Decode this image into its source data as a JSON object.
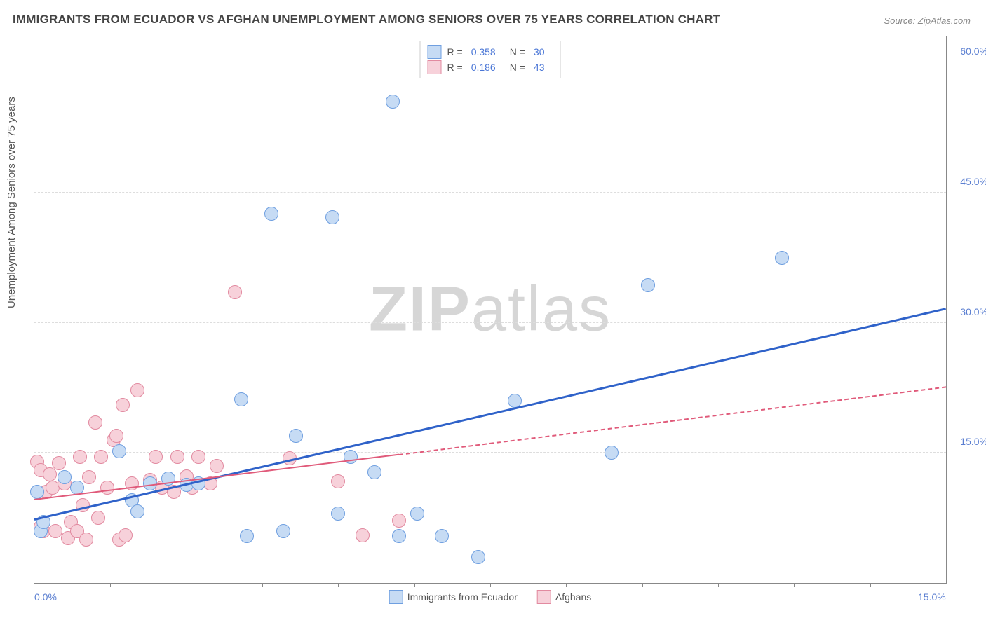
{
  "title": "IMMIGRANTS FROM ECUADOR VS AFGHAN UNEMPLOYMENT AMONG SENIORS OVER 75 YEARS CORRELATION CHART",
  "source": "Source: ZipAtlas.com",
  "ylabel": "Unemployment Among Seniors over 75 years",
  "watermark_bold": "ZIP",
  "watermark_light": "atlas",
  "chart": {
    "type": "scatter",
    "xlim": [
      0,
      15
    ],
    "ylim": [
      0,
      63
    ],
    "xtick_marks": [
      1.25,
      2.5,
      3.75,
      5.0,
      6.25,
      7.5,
      8.75,
      10.0,
      11.25,
      12.5,
      13.75
    ],
    "xticks": [
      {
        "v": 0,
        "label": "0.0%"
      },
      {
        "v": 15,
        "label": "15.0%"
      }
    ],
    "yticks": [
      {
        "v": 15,
        "label": "15.0%"
      },
      {
        "v": 30,
        "label": "30.0%"
      },
      {
        "v": 45,
        "label": "45.0%"
      },
      {
        "v": 60,
        "label": "60.0%"
      }
    ],
    "grid_color": "#dddddd",
    "background_color": "#ffffff",
    "series": [
      {
        "name": "Immigrants from Ecuador",
        "fill": "#c6dbf4",
        "stroke": "#6f9fe0",
        "marker_radius": 9,
        "R": "0.358",
        "N": "30",
        "trend": {
          "x1": 0,
          "y1": 7.2,
          "x2": 15,
          "y2": 31.5,
          "color": "#2f62c9",
          "width": 3,
          "dashed": false,
          "solid_until_x": 15
        },
        "points": [
          {
            "x": 0.05,
            "y": 10.5
          },
          {
            "x": 0.1,
            "y": 6.0
          },
          {
            "x": 0.15,
            "y": 7.0
          },
          {
            "x": 0.5,
            "y": 12.2
          },
          {
            "x": 0.7,
            "y": 11.0
          },
          {
            "x": 1.4,
            "y": 15.2
          },
          {
            "x": 1.6,
            "y": 9.5
          },
          {
            "x": 1.7,
            "y": 8.2
          },
          {
            "x": 1.9,
            "y": 11.5
          },
          {
            "x": 2.2,
            "y": 12.0
          },
          {
            "x": 2.5,
            "y": 11.3
          },
          {
            "x": 2.7,
            "y": 11.5
          },
          {
            "x": 3.4,
            "y": 21.2
          },
          {
            "x": 3.5,
            "y": 5.4
          },
          {
            "x": 3.9,
            "y": 42.6
          },
          {
            "x": 4.1,
            "y": 6.0
          },
          {
            "x": 4.3,
            "y": 17.0
          },
          {
            "x": 4.9,
            "y": 42.2
          },
          {
            "x": 5.0,
            "y": 8.0
          },
          {
            "x": 5.2,
            "y": 14.5
          },
          {
            "x": 5.6,
            "y": 12.8
          },
          {
            "x": 5.9,
            "y": 55.5
          },
          {
            "x": 6.0,
            "y": 5.4
          },
          {
            "x": 6.3,
            "y": 8.0
          },
          {
            "x": 6.7,
            "y": 5.4
          },
          {
            "x": 7.3,
            "y": 3.0
          },
          {
            "x": 7.9,
            "y": 21.0
          },
          {
            "x": 9.5,
            "y": 15.0
          },
          {
            "x": 10.1,
            "y": 34.3
          },
          {
            "x": 12.3,
            "y": 37.5
          }
        ]
      },
      {
        "name": "Afghans",
        "fill": "#f7d1da",
        "stroke": "#e28aa0",
        "marker_radius": 9,
        "R": "0.186",
        "N": "43",
        "trend": {
          "x1": 0,
          "y1": 9.5,
          "x2": 15,
          "y2": 22.5,
          "color": "#e05a7a",
          "width": 2,
          "dashed": true,
          "solid_until_x": 6.0
        },
        "points": [
          {
            "x": 0.05,
            "y": 14.0
          },
          {
            "x": 0.1,
            "y": 13.0
          },
          {
            "x": 0.1,
            "y": 6.5
          },
          {
            "x": 0.15,
            "y": 6.0
          },
          {
            "x": 0.2,
            "y": 10.5
          },
          {
            "x": 0.25,
            "y": 12.5
          },
          {
            "x": 0.3,
            "y": 11.0
          },
          {
            "x": 0.35,
            "y": 6.0
          },
          {
            "x": 0.4,
            "y": 13.8
          },
          {
            "x": 0.5,
            "y": 11.5
          },
          {
            "x": 0.55,
            "y": 5.2
          },
          {
            "x": 0.6,
            "y": 7.0
          },
          {
            "x": 0.7,
            "y": 6.0
          },
          {
            "x": 0.75,
            "y": 14.5
          },
          {
            "x": 0.8,
            "y": 9.0
          },
          {
            "x": 0.85,
            "y": 5.0
          },
          {
            "x": 0.9,
            "y": 12.2
          },
          {
            "x": 1.0,
            "y": 18.5
          },
          {
            "x": 1.05,
            "y": 7.5
          },
          {
            "x": 1.1,
            "y": 14.5
          },
          {
            "x": 1.2,
            "y": 11.0
          },
          {
            "x": 1.3,
            "y": 16.5
          },
          {
            "x": 1.35,
            "y": 17.0
          },
          {
            "x": 1.4,
            "y": 5.0
          },
          {
            "x": 1.45,
            "y": 20.5
          },
          {
            "x": 1.5,
            "y": 5.5
          },
          {
            "x": 1.6,
            "y": 11.5
          },
          {
            "x": 1.7,
            "y": 22.2
          },
          {
            "x": 1.9,
            "y": 11.9
          },
          {
            "x": 2.0,
            "y": 14.5
          },
          {
            "x": 2.1,
            "y": 11.0
          },
          {
            "x": 2.3,
            "y": 10.5
          },
          {
            "x": 2.35,
            "y": 14.5
          },
          {
            "x": 2.5,
            "y": 12.3
          },
          {
            "x": 2.6,
            "y": 11.0
          },
          {
            "x": 2.7,
            "y": 14.5
          },
          {
            "x": 2.9,
            "y": 11.5
          },
          {
            "x": 3.0,
            "y": 13.5
          },
          {
            "x": 3.3,
            "y": 33.5
          },
          {
            "x": 4.2,
            "y": 14.4
          },
          {
            "x": 5.0,
            "y": 11.7
          },
          {
            "x": 5.4,
            "y": 5.5
          },
          {
            "x": 6.0,
            "y": 7.2
          }
        ]
      }
    ]
  }
}
